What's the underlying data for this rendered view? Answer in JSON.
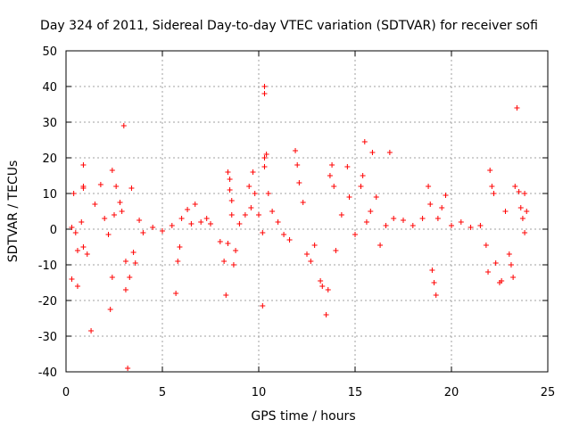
{
  "chart_data": {
    "type": "scatter",
    "title": "Day 324 of 2011, Sidereal Day-to-day VTEC variation (SDTVAR) for receiver sofi",
    "xlabel": "GPS time / hours",
    "ylabel": "SDTVAR / TECUs",
    "xlim": [
      0,
      25
    ],
    "ylim": [
      -40,
      50
    ],
    "xticks": [
      0,
      5,
      10,
      15,
      20,
      25
    ],
    "yticks": [
      -40,
      -30,
      -20,
      -10,
      0,
      10,
      20,
      30,
      40,
      50
    ],
    "grid": true,
    "marker": "+",
    "color": "#ff0000",
    "series": [
      {
        "name": "SDTVAR",
        "points": [
          [
            0.3,
            0.5
          ],
          [
            0.5,
            -1.0
          ],
          [
            0.8,
            2.0
          ],
          [
            0.9,
            11.5
          ],
          [
            0.9,
            12.0
          ],
          [
            0.9,
            18.0
          ],
          [
            0.3,
            -14.0
          ],
          [
            0.6,
            -16.0
          ],
          [
            0.6,
            -6.0
          ],
          [
            0.9,
            -5.0
          ],
          [
            1.1,
            -7.0
          ],
          [
            0.4,
            10.0
          ],
          [
            1.3,
            -28.5
          ],
          [
            1.5,
            7.0
          ],
          [
            1.8,
            12.5
          ],
          [
            2.0,
            3.0
          ],
          [
            2.2,
            -1.5
          ],
          [
            2.3,
            -22.5
          ],
          [
            2.4,
            16.5
          ],
          [
            2.4,
            -13.5
          ],
          [
            2.5,
            4.0
          ],
          [
            2.6,
            12.0
          ],
          [
            2.8,
            7.5
          ],
          [
            2.9,
            5.0
          ],
          [
            3.0,
            29.0
          ],
          [
            3.1,
            -9.0
          ],
          [
            3.1,
            -17.0
          ],
          [
            3.2,
            -39.0
          ],
          [
            3.3,
            -13.5
          ],
          [
            3.4,
            11.5
          ],
          [
            3.5,
            -6.5
          ],
          [
            3.6,
            -9.5
          ],
          [
            3.8,
            2.5
          ],
          [
            4.0,
            -1.0
          ],
          [
            4.5,
            0.5
          ],
          [
            5.0,
            -0.5
          ],
          [
            5.5,
            1.0
          ],
          [
            5.7,
            -18.0
          ],
          [
            5.8,
            -9.0
          ],
          [
            5.9,
            -5.0
          ],
          [
            6.0,
            3.0
          ],
          [
            6.3,
            5.5
          ],
          [
            6.5,
            1.5
          ],
          [
            6.7,
            7.0
          ],
          [
            7.0,
            2.0
          ],
          [
            7.3,
            3.0
          ],
          [
            7.5,
            1.5
          ],
          [
            8.0,
            -3.5
          ],
          [
            8.2,
            -9.0
          ],
          [
            8.3,
            -18.5
          ],
          [
            8.4,
            -4.0
          ],
          [
            8.4,
            16.0
          ],
          [
            8.5,
            14.0
          ],
          [
            8.5,
            11.0
          ],
          [
            8.6,
            8.0
          ],
          [
            8.6,
            4.0
          ],
          [
            8.7,
            -10.0
          ],
          [
            8.8,
            -6.0
          ],
          [
            9.0,
            1.5
          ],
          [
            9.3,
            4.0
          ],
          [
            9.5,
            12.0
          ],
          [
            9.6,
            6.0
          ],
          [
            9.7,
            16.0
          ],
          [
            9.8,
            10.0
          ],
          [
            10.0,
            4.0
          ],
          [
            10.2,
            -1.0
          ],
          [
            10.3,
            38.0
          ],
          [
            10.3,
            40.0
          ],
          [
            10.2,
            -21.5
          ],
          [
            10.3,
            17.5
          ],
          [
            10.3,
            20.0
          ],
          [
            10.4,
            21.0
          ],
          [
            10.5,
            10.0
          ],
          [
            10.7,
            5.0
          ],
          [
            11.0,
            2.0
          ],
          [
            11.3,
            -1.5
          ],
          [
            11.6,
            -3.0
          ],
          [
            11.9,
            22.0
          ],
          [
            12.0,
            18.0
          ],
          [
            12.1,
            13.0
          ],
          [
            12.3,
            7.5
          ],
          [
            12.5,
            -7.0
          ],
          [
            12.7,
            -9.0
          ],
          [
            12.9,
            -4.5
          ],
          [
            13.2,
            -14.5
          ],
          [
            13.3,
            -16.0
          ],
          [
            13.5,
            -24.0
          ],
          [
            13.6,
            -17.0
          ],
          [
            13.7,
            15.0
          ],
          [
            13.8,
            18.0
          ],
          [
            13.9,
            12.0
          ],
          [
            14.0,
            -6.0
          ],
          [
            14.3,
            4.0
          ],
          [
            14.6,
            17.5
          ],
          [
            14.7,
            9.0
          ],
          [
            15.0,
            -1.5
          ],
          [
            15.3,
            12.0
          ],
          [
            15.4,
            15.0
          ],
          [
            15.5,
            24.5
          ],
          [
            15.6,
            2.0
          ],
          [
            15.8,
            5.0
          ],
          [
            15.9,
            21.5
          ],
          [
            16.1,
            9.0
          ],
          [
            16.3,
            -4.5
          ],
          [
            16.6,
            1.0
          ],
          [
            16.8,
            21.5
          ],
          [
            17.0,
            3.0
          ],
          [
            17.5,
            2.5
          ],
          [
            18.0,
            1.0
          ],
          [
            18.5,
            3.0
          ],
          [
            18.8,
            12.0
          ],
          [
            18.9,
            7.0
          ],
          [
            19.0,
            -11.5
          ],
          [
            19.1,
            -15.0
          ],
          [
            19.2,
            -18.5
          ],
          [
            19.3,
            3.0
          ],
          [
            19.5,
            6.0
          ],
          [
            19.7,
            9.5
          ],
          [
            20.0,
            1.0
          ],
          [
            20.5,
            2.0
          ],
          [
            21.0,
            0.5
          ],
          [
            21.5,
            1.0
          ],
          [
            21.8,
            -4.5
          ],
          [
            21.9,
            -12.0
          ],
          [
            22.0,
            16.5
          ],
          [
            22.1,
            12.0
          ],
          [
            22.2,
            10.0
          ],
          [
            22.3,
            -9.5
          ],
          [
            22.5,
            -15.0
          ],
          [
            22.6,
            -14.5
          ],
          [
            22.8,
            5.0
          ],
          [
            23.0,
            -7.0
          ],
          [
            23.1,
            -10.0
          ],
          [
            23.2,
            -13.5
          ],
          [
            23.3,
            12.0
          ],
          [
            23.4,
            34.0
          ],
          [
            23.5,
            10.5
          ],
          [
            23.6,
            6.0
          ],
          [
            23.7,
            3.0
          ],
          [
            23.8,
            -1.0
          ],
          [
            23.8,
            10.0
          ],
          [
            23.9,
            5.0
          ]
        ]
      }
    ]
  }
}
